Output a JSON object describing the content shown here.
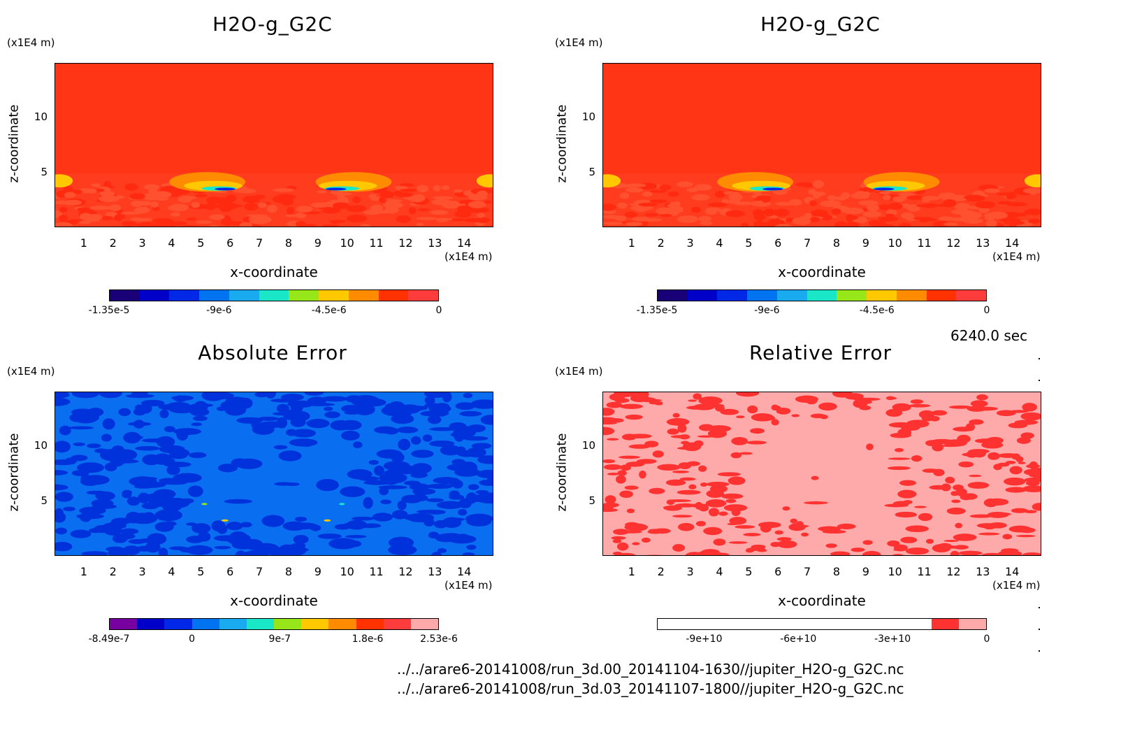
{
  "time_label": "6240.0 sec",
  "files": [
    "../../arare6-20141008/run_3d.00_20141104-1630//jupiter_H2O-g_G2C.nc",
    "../../arare6-20141008/run_3d.03_20141107-1800//jupiter_H2O-g_G2C.nc"
  ],
  "axes": {
    "x_label": "x-coordinate",
    "y_label": "z-coordinate",
    "x_unit": "(x1E4 m)",
    "y_unit": "(x1E4 m)",
    "x_ticks": [
      "1",
      "2",
      "3",
      "4",
      "5",
      "6",
      "7",
      "8",
      "9",
      "10",
      "11",
      "12",
      "13",
      "14"
    ],
    "y_ticks": [
      "5",
      "10"
    ]
  },
  "chart_data": [
    {
      "type": "heatmap",
      "title": "H2O-g_G2C",
      "xlabel": "x-coordinate",
      "ylabel": "z-coordinate",
      "xlim": [
        0,
        15
      ],
      "ylim": [
        0,
        15
      ],
      "colorbar_ticks": [
        "-1.35e-5",
        "-9e-6",
        "-4.5e-6",
        "0"
      ],
      "colorbar_range": [
        -1.35e-05,
        0
      ],
      "colorbar_colors": [
        "#1a0078",
        "#0000c8",
        "#0028e6",
        "#0073f0",
        "#1aaaf0",
        "#1ae6c8",
        "#96e61a",
        "#ffc800",
        "#ff8c00",
        "#ff3200",
        "#ff3c3c"
      ],
      "background_color": "#ff3c1e"
    },
    {
      "type": "heatmap",
      "title": "H2O-g_G2C",
      "xlabel": "x-coordinate",
      "ylabel": "z-coordinate",
      "xlim": [
        0,
        15
      ],
      "ylim": [
        0,
        15
      ],
      "colorbar_ticks": [
        "-1.35e-5",
        "-9e-6",
        "-4.5e-6",
        "0"
      ],
      "colorbar_range": [
        -1.35e-05,
        0
      ],
      "colorbar_colors": [
        "#1a0078",
        "#0000c8",
        "#0028e6",
        "#0073f0",
        "#1aaaf0",
        "#1ae6c8",
        "#96e61a",
        "#ffc800",
        "#ff8c00",
        "#ff3200",
        "#ff3c3c"
      ],
      "background_color": "#ff3c1e"
    },
    {
      "type": "heatmap",
      "title": "Absolute Error",
      "xlabel": "x-coordinate",
      "ylabel": "z-coordinate",
      "xlim": [
        0,
        15
      ],
      "ylim": [
        0,
        15
      ],
      "colorbar_ticks": [
        "-8.49e-7",
        "0",
        "9e-7",
        "1.8e-6",
        "2.53e-6"
      ],
      "colorbar_range": [
        -8.49e-07,
        2.53e-06
      ],
      "colorbar_colors": [
        "#7800a0",
        "#0000c8",
        "#0028e6",
        "#0073f0",
        "#1aaaf0",
        "#1ae6c8",
        "#96e61a",
        "#ffc800",
        "#ff8c00",
        "#ff3200",
        "#ff3c3c",
        "#ffaaaa"
      ],
      "background_color": "#0a6ef0"
    },
    {
      "type": "heatmap",
      "title": "Relative Error",
      "xlabel": "x-coordinate",
      "ylabel": "z-coordinate",
      "xlim": [
        0,
        15
      ],
      "ylim": [
        0,
        15
      ],
      "colorbar_ticks": [
        "-9e+10",
        "-6e+10",
        "-3e+10",
        "0"
      ],
      "colorbar_range": [
        -105000000000.0,
        0
      ],
      "colorbar_colors": [
        "#ffffff",
        "#ffffff",
        "#ffffff",
        "#ffffff",
        "#ffffff",
        "#ffffff",
        "#ffffff",
        "#ffffff",
        "#ffffff",
        "#ffffff",
        "#ff3232",
        "#ffaaaa"
      ],
      "background_color": "#ffaaaa"
    }
  ]
}
